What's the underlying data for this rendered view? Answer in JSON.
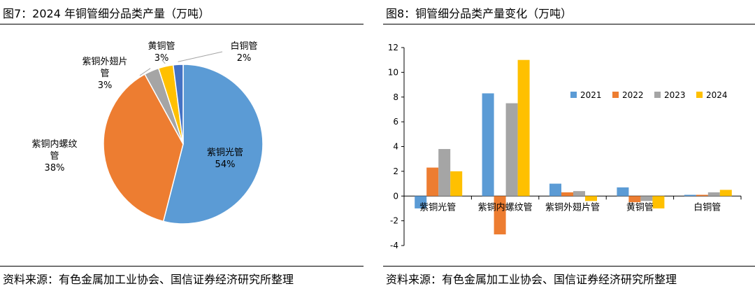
{
  "left": {
    "title": "图7：2024 年铜管细分品类产量（万吨）",
    "source": "资料来源：有色金属加工业协会、国信证券经济研究所整理"
  },
  "right": {
    "title": "图8：铜管细分品类产量变化（万吨）",
    "source": "资料来源：有色金属加工业协会、国信证券经济研究所整理"
  },
  "chart_data": [
    {
      "type": "pie",
      "title": "2024 年铜管细分品类产量（万吨）",
      "slices": [
        {
          "label": "紫铜光管",
          "pct_label": "54%",
          "value": 54,
          "color": "#5B9BD5"
        },
        {
          "label": "紫铜内螺纹管",
          "pct_label": "38%",
          "value": 38,
          "color": "#ED7D31"
        },
        {
          "label": "紫铜外翅片管",
          "pct_label": "3%",
          "value": 3,
          "color": "#A5A5A5"
        },
        {
          "label": "黄铜管",
          "pct_label": "3%",
          "value": 3,
          "color": "#FFC000"
        },
        {
          "label": "白铜管",
          "pct_label": "2%",
          "value": 2,
          "color": "#4472C4"
        }
      ]
    },
    {
      "type": "bar",
      "title": "铜管细分品类产量变化（万吨）",
      "categories": [
        "紫铜光管",
        "紫铜内螺纹管",
        "紫铜外翅片管",
        "黄铜管",
        "白铜管"
      ],
      "series": [
        {
          "name": "2021",
          "color": "#5B9BD5",
          "values": [
            -1.0,
            8.3,
            1.0,
            0.7,
            0.1
          ]
        },
        {
          "name": "2022",
          "color": "#ED7D31",
          "values": [
            2.3,
            -3.1,
            0.3,
            -0.5,
            0.1
          ]
        },
        {
          "name": "2023",
          "color": "#A5A5A5",
          "values": [
            3.8,
            7.5,
            0.4,
            -0.4,
            0.3
          ]
        },
        {
          "name": "2024",
          "color": "#FFC000",
          "values": [
            2.0,
            11.0,
            -0.4,
            -1.0,
            0.5
          ]
        }
      ],
      "ylim": [
        -4,
        12
      ],
      "yticks": [
        -4,
        -2,
        0,
        2,
        4,
        6,
        8,
        10,
        12
      ],
      "legend": "top-right",
      "grid": false
    }
  ]
}
